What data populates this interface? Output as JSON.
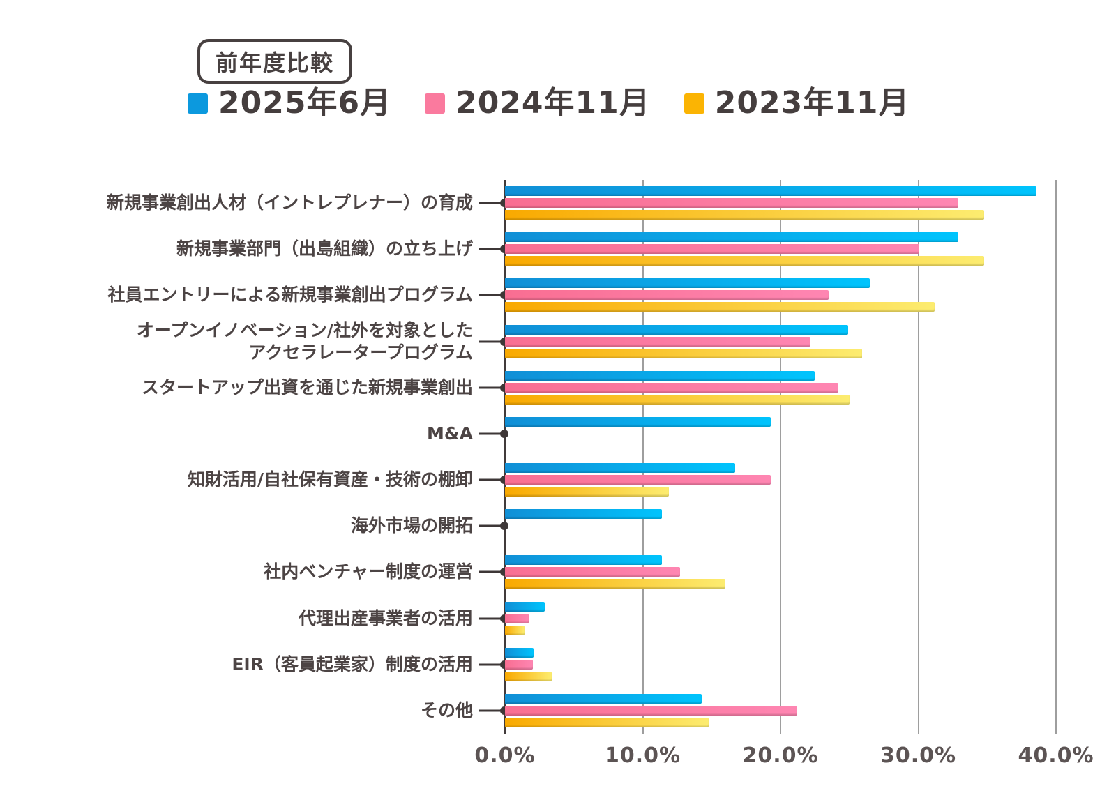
{
  "badge": "前年度比較",
  "legend": [
    {
      "label": "2025年6月",
      "color": "#0C99DE"
    },
    {
      "label": "2024年11月",
      "color": "#FA7A9E"
    },
    {
      "label": "2023年11月",
      "color": "#FBB403"
    }
  ],
  "chart_data": {
    "type": "bar",
    "orientation": "horizontal",
    "title": "前年度比較",
    "categories": [
      "新規事業創出人材（イントレプレナー）の育成",
      "新規事業部門（出島組織）の立ち上げ",
      "社員エントリーによる新規事業創出プログラム",
      "オープンイノベーション/社外を対象とした\nアクセラレータープログラム",
      "スタートアップ出資を通じた新規事業創出",
      "M&A",
      "知財活用/自社保有資産・技術の棚卸",
      "海外市場の開拓",
      "社内ベンチャー制度の運営",
      "代理出産事業者の活用",
      "EIR（客員起業家）制度の活用",
      "その他"
    ],
    "series": [
      {
        "name": "2025年6月",
        "key": "2025-06",
        "color_start": "#118FD6",
        "color_end": "#00C4FD",
        "values": [
          38.6,
          32.9,
          26.5,
          24.9,
          22.5,
          19.3,
          16.7,
          11.4,
          11.4,
          2.9,
          2.1,
          14.3
        ]
      },
      {
        "name": "2024年11月",
        "key": "2024-11",
        "color_start": "#F96E92",
        "color_end": "#FE86B2",
        "values": [
          32.9,
          30.1,
          23.5,
          22.2,
          24.2,
          null,
          19.3,
          null,
          12.7,
          1.7,
          2.0,
          21.2
        ]
      },
      {
        "name": "2023年11月",
        "key": "2023-11",
        "color_start": "#F9A900",
        "color_end": "#FCEC70",
        "values": [
          34.8,
          34.8,
          31.2,
          25.9,
          25.0,
          null,
          11.9,
          null,
          16.0,
          1.4,
          3.4,
          14.8
        ]
      }
    ],
    "xlabel": "",
    "ylabel": "",
    "x_ticks": [
      "0.0%",
      "10.0%",
      "20.0%",
      "30.0%",
      "40.0%"
    ],
    "xlim": [
      0,
      40
    ],
    "grid": true,
    "legend_position": "top"
  }
}
